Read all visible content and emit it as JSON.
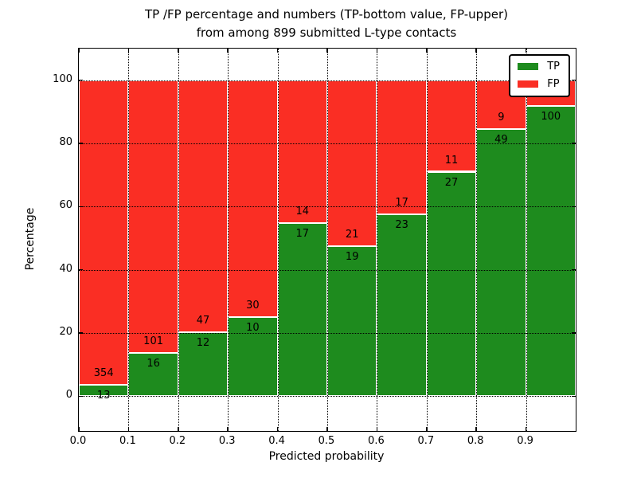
{
  "figure": {
    "title_line1": "TP /FP percentage and numbers (TP-bottom value, FP-upper)",
    "title_line2": "from among 899 submitted L-type contacts"
  },
  "axes": {
    "xlabel": "Predicted probability",
    "ylabel": "Percentage"
  },
  "legend": {
    "position": "upper right",
    "entries": [
      {
        "label": "TP",
        "color": "#1e8b1e"
      },
      {
        "label": "FP",
        "color": "#fa2e24"
      }
    ]
  },
  "chart_data": {
    "type": "bar",
    "stacked": true,
    "normalized_to_percent": true,
    "title": "TP /FP percentage and numbers (TP-bottom value, FP-upper) from among 899 submitted L-type contacts",
    "xlabel": "Predicted probability",
    "ylabel": "Percentage",
    "xlim": [
      0.0,
      1.0
    ],
    "ylim": [
      -11,
      110
    ],
    "x_tick_labels": [
      "0.0",
      "0.1",
      "0.2",
      "0.3",
      "0.4",
      "0.5",
      "0.6",
      "0.7",
      "0.8",
      "0.9"
    ],
    "y_ticks": [
      0,
      20,
      40,
      60,
      80,
      100
    ],
    "grid": "dotted",
    "legend_position": "upper right",
    "series": [
      {
        "name": "TP",
        "color": "#1e8b1e"
      },
      {
        "name": "FP",
        "color": "#fa2e24"
      }
    ],
    "bins": [
      {
        "x_start": 0.0,
        "x_end": 0.1,
        "tp_count": 13,
        "fp_count": 354,
        "tp_pct": 3.54,
        "fp_pct": 96.46
      },
      {
        "x_start": 0.1,
        "x_end": 0.2,
        "tp_count": 16,
        "fp_count": 101,
        "tp_pct": 13.68,
        "fp_pct": 86.32
      },
      {
        "x_start": 0.2,
        "x_end": 0.3,
        "tp_count": 12,
        "fp_count": 47,
        "tp_pct": 20.34,
        "fp_pct": 79.66
      },
      {
        "x_start": 0.3,
        "x_end": 0.4,
        "tp_count": 10,
        "fp_count": 30,
        "tp_pct": 25.0,
        "fp_pct": 75.0
      },
      {
        "x_start": 0.4,
        "x_end": 0.5,
        "tp_count": 17,
        "fp_count": 14,
        "tp_pct": 54.84,
        "fp_pct": 45.16
      },
      {
        "x_start": 0.5,
        "x_end": 0.6,
        "tp_count": 19,
        "fp_count": 21,
        "tp_pct": 47.5,
        "fp_pct": 52.5
      },
      {
        "x_start": 0.6,
        "x_end": 0.7,
        "tp_count": 23,
        "fp_count": 17,
        "tp_pct": 57.5,
        "fp_pct": 42.5
      },
      {
        "x_start": 0.7,
        "x_end": 0.8,
        "tp_count": 27,
        "fp_count": 11,
        "tp_pct": 71.05,
        "fp_pct": 28.95
      },
      {
        "x_start": 0.8,
        "x_end": 0.9,
        "tp_count": 49,
        "fp_count": 9,
        "tp_pct": 84.48,
        "fp_pct": 15.52
      },
      {
        "x_start": 0.9,
        "x_end": 1.0,
        "tp_count": 100,
        "fp_count": 9,
        "tp_pct": 91.74,
        "fp_pct": 8.26
      }
    ]
  }
}
